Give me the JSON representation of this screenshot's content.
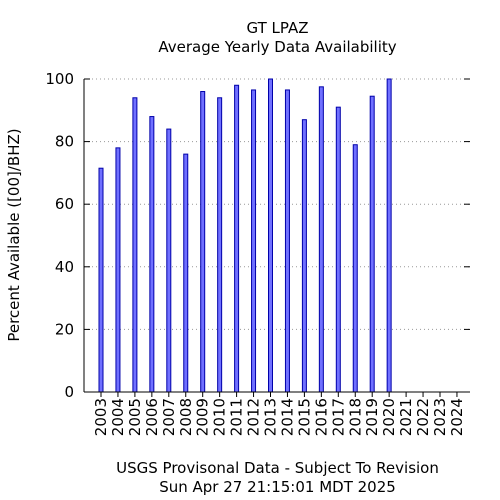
{
  "header": {
    "title": "GT LPAZ",
    "subtitle": "Average Yearly Data Availability"
  },
  "footer": {
    "line1": "USGS Provisonal Data - Subject To Revision",
    "line2": "Sun Apr 27 21:15:01 MDT 2025"
  },
  "colors": {
    "bar_fill": "#7070ff",
    "bar_stroke": "#0000aa",
    "grid": "#999999",
    "axis": "#000000"
  },
  "chart_data": {
    "type": "bar",
    "title": "GT LPAZ",
    "subtitle": "Average Yearly Data Availability",
    "ylabel": "Percent Available ([00]/BHZ)",
    "xlabel": "",
    "ylim": [
      0,
      100
    ],
    "yticks": [
      0,
      20,
      40,
      60,
      80,
      100
    ],
    "grid": "horizontal dotted",
    "categories": [
      "2003",
      "2004",
      "2005",
      "2006",
      "2007",
      "2008",
      "2009",
      "2010",
      "2011",
      "2012",
      "2013",
      "2014",
      "2015",
      "2016",
      "2017",
      "2018",
      "2019",
      "2020",
      "2021",
      "2022",
      "2023",
      "2024"
    ],
    "values": [
      71.5,
      78,
      94,
      88,
      84,
      76,
      96,
      94,
      98,
      96.5,
      100,
      96.5,
      87,
      97.5,
      91,
      79,
      94.5,
      100,
      null,
      null,
      null,
      null
    ]
  }
}
